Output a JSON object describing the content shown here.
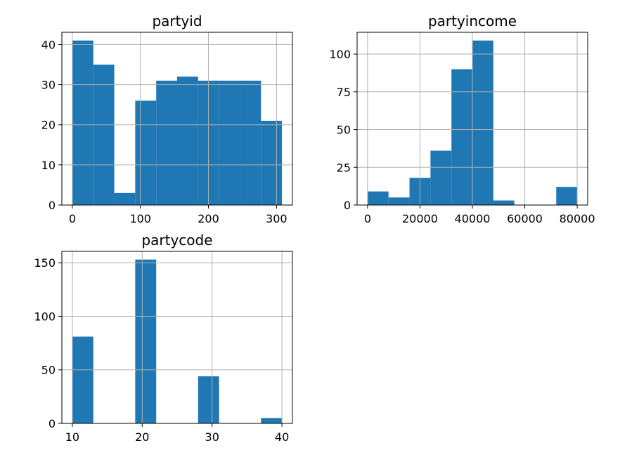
{
  "chart_data": [
    {
      "type": "bar",
      "title": "partyid",
      "bin_edges": [
        0,
        30.8,
        61.6,
        92.4,
        123.2,
        154,
        184.8,
        215.6,
        246.4,
        277.2,
        308
      ],
      "counts": [
        41,
        35,
        3,
        26,
        31,
        32,
        31,
        31,
        31,
        21
      ],
      "xlim": [
        -15.4,
        323.4
      ],
      "ylim": [
        0,
        43.05
      ],
      "xticks": [
        0,
        100,
        200,
        300
      ],
      "yticks": [
        0,
        10,
        20,
        30,
        40
      ],
      "grid": true,
      "color": "#1f77b4"
    },
    {
      "type": "bar",
      "title": "partyincome",
      "bin_edges": [
        0,
        8000,
        16000,
        24000,
        32000,
        40000,
        48000,
        56000,
        64000,
        72000,
        80000
      ],
      "counts": [
        9,
        5,
        18,
        36,
        90,
        109,
        3,
        0,
        0,
        12
      ],
      "xlim": [
        -4000,
        84000
      ],
      "ylim": [
        0,
        114.45
      ],
      "xticks": [
        0,
        20000,
        40000,
        60000,
        80000
      ],
      "yticks": [
        0,
        25,
        50,
        75,
        100
      ],
      "grid": true,
      "color": "#1f77b4"
    },
    {
      "type": "bar",
      "title": "partycode",
      "bin_edges": [
        10,
        13,
        16,
        19,
        22,
        25,
        28,
        31,
        34,
        37,
        40
      ],
      "counts": [
        81,
        0,
        0,
        153,
        0,
        0,
        44,
        0,
        0,
        5
      ],
      "xlim": [
        8.5,
        41.5
      ],
      "ylim": [
        0,
        160.65
      ],
      "xticks": [
        10,
        20,
        30,
        40
      ],
      "yticks": [
        0,
        50,
        100,
        150
      ],
      "grid": true,
      "color": "#1f77b4"
    }
  ]
}
